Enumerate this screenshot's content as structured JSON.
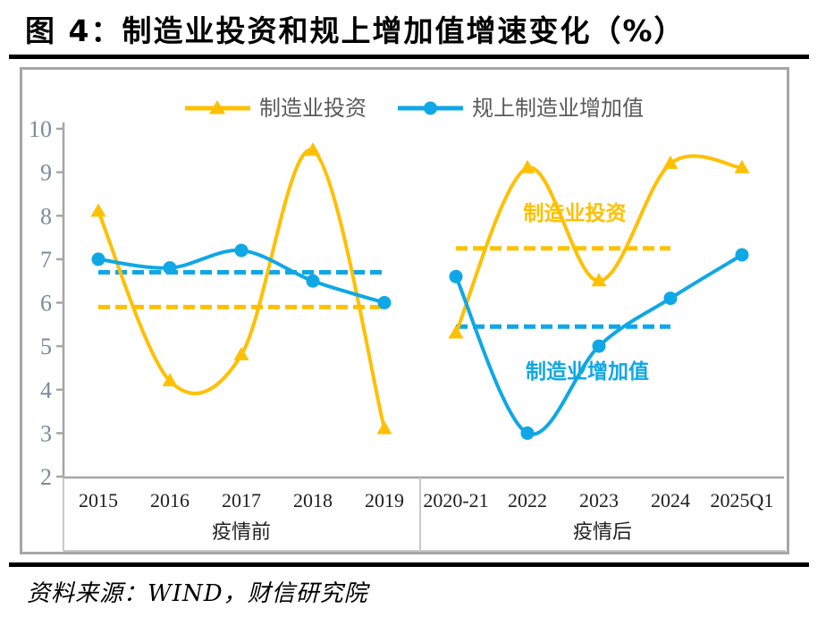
{
  "header": {
    "title": "图 4：制造业投资和规上增加值增速变化（%）"
  },
  "footer": {
    "source": "资料来源：WIND，财信研究院"
  },
  "colors": {
    "investment": "#FFC000",
    "added_value": "#0FA7E6",
    "axis": "#A6A6A6",
    "box_line": "#C9C9C9",
    "tick_label": "#7B8A9C",
    "category_label": "#1F1F1F",
    "legend_label": "#595959"
  },
  "legend": {
    "items": [
      {
        "label": "制造业投资",
        "marker": "triangle"
      },
      {
        "label": "规上制造业增加值",
        "marker": "circle"
      }
    ]
  },
  "annotations": {
    "investment": {
      "text": "制造业投资"
    },
    "added_value": {
      "text": "制造业增加值"
    }
  },
  "chart_data": {
    "type": "line",
    "title": "制造业投资和规上增加值增速变化（%）",
    "xlabel": "",
    "ylabel": "",
    "ylim": [
      2,
      10
    ],
    "yticks": [
      10,
      9,
      8,
      7,
      6,
      5,
      4,
      3,
      2
    ],
    "grid": false,
    "legend_position": "top",
    "groups": [
      {
        "label": "疫情前",
        "categories": [
          "2015",
          "2016",
          "2017",
          "2018",
          "2019"
        ]
      },
      {
        "label": "疫情后",
        "categories": [
          "2020-21",
          "2022",
          "2023",
          "2024",
          "2025Q1"
        ]
      }
    ],
    "series": [
      {
        "name": "制造业投资",
        "color": "#FFC000",
        "marker": "triangle",
        "line_style": "smooth",
        "values": [
          8.1,
          4.2,
          4.8,
          9.5,
          3.1,
          5.3,
          9.1,
          6.5,
          9.2,
          9.1
        ],
        "mean_lines": [
          {
            "from": "2015",
            "to": "2019",
            "value": 5.9
          },
          {
            "from": "2020-21",
            "to": "2024",
            "value": 7.25
          }
        ]
      },
      {
        "name": "规上制造业增加值",
        "color": "#0FA7E6",
        "marker": "circle",
        "line_style": "smooth",
        "values": [
          7.0,
          6.8,
          7.2,
          6.5,
          6.0,
          6.6,
          3.0,
          5.0,
          6.1,
          7.1
        ],
        "mean_lines": [
          {
            "from": "2015",
            "to": "2019",
            "value": 6.7
          },
          {
            "from": "2020-21",
            "to": "2024",
            "value": 5.45
          }
        ]
      }
    ]
  }
}
